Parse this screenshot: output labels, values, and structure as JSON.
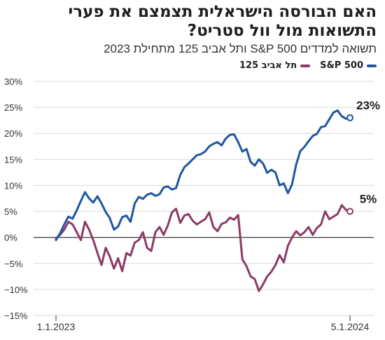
{
  "title": "האם הבורסה הישראלית תצמצם את פערי התשואות מול וול סטריט?",
  "subtitle": "תשואה למדדים S&P 500 ותל אביב 125 מתחילת 2023",
  "colors": {
    "sp500": "#1f56a3",
    "ta125": "#8c3a66",
    "grid": "#d9d9d9",
    "zero": "#222222"
  },
  "chart_data": {
    "type": "line",
    "x_start_label": "1.1.2023",
    "x_end_label": "5.1.2024",
    "ylim": [
      -15,
      30
    ],
    "yticks": [
      -15,
      -10,
      -5,
      0,
      5,
      10,
      15,
      20,
      25,
      30
    ],
    "ytick_labels": [
      "−15%",
      "−10%",
      "−5%",
      "0%",
      "5%",
      "10%",
      "15%",
      "20%",
      "25%",
      "30%"
    ],
    "grid": true,
    "legend": "top-right",
    "series": [
      {
        "name": "S&P 500",
        "color": "#1f56a3",
        "end_label": "23%",
        "values": [
          -0.5,
          0.8,
          2.5,
          4.0,
          3.6,
          5.2,
          7.0,
          8.7,
          7.5,
          6.7,
          7.9,
          6.5,
          4.9,
          3.7,
          1.5,
          2.1,
          3.9,
          4.2,
          3.0,
          6.5,
          7.8,
          7.4,
          8.2,
          8.5,
          8.0,
          8.3,
          9.6,
          9.8,
          9.2,
          9.5,
          12.0,
          13.5,
          14.2,
          15.0,
          15.8,
          16.0,
          16.5,
          17.5,
          18.0,
          18.3,
          17.7,
          19.0,
          19.7,
          19.8,
          18.3,
          16.5,
          17.0,
          14.5,
          13.8,
          15.0,
          14.2,
          12.4,
          13.0,
          12.5,
          10.0,
          10.4,
          8.5,
          10.2,
          14.0,
          16.6,
          17.4,
          18.5,
          19.5,
          19.9,
          21.2,
          21.4,
          22.7,
          24.0,
          24.4,
          23.3,
          22.8,
          23.0
        ]
      },
      {
        "name": "תל אביב 125",
        "color": "#8c3a66",
        "end_label": "5%",
        "values": [
          -0.2,
          0.5,
          1.5,
          3.0,
          2.5,
          1.0,
          -0.5,
          3.0,
          1.5,
          -0.5,
          -3.0,
          -5.3,
          -2.0,
          -3.7,
          -6.0,
          -4.0,
          -6.5,
          -3.0,
          -3.5,
          -1.0,
          -0.5,
          1.0,
          -2.0,
          -2.6,
          1.0,
          2.0,
          0.5,
          2.3,
          4.8,
          5.5,
          2.8,
          4.2,
          4.5,
          3.2,
          2.5,
          3.0,
          3.5,
          4.8,
          2.0,
          1.2,
          2.6,
          2.9,
          3.8,
          3.4,
          4.3,
          -4.2,
          -5.5,
          -7.5,
          -8.0,
          -10.3,
          -9.0,
          -7.5,
          -6.6,
          -5.3,
          -3.4,
          -4.8,
          -1.6,
          0.0,
          1.2,
          0.4,
          1.0,
          2.0,
          0.5,
          1.8,
          2.5,
          5.0,
          3.5,
          4.0,
          4.5,
          6.2,
          5.3,
          5.0
        ]
      }
    ]
  }
}
